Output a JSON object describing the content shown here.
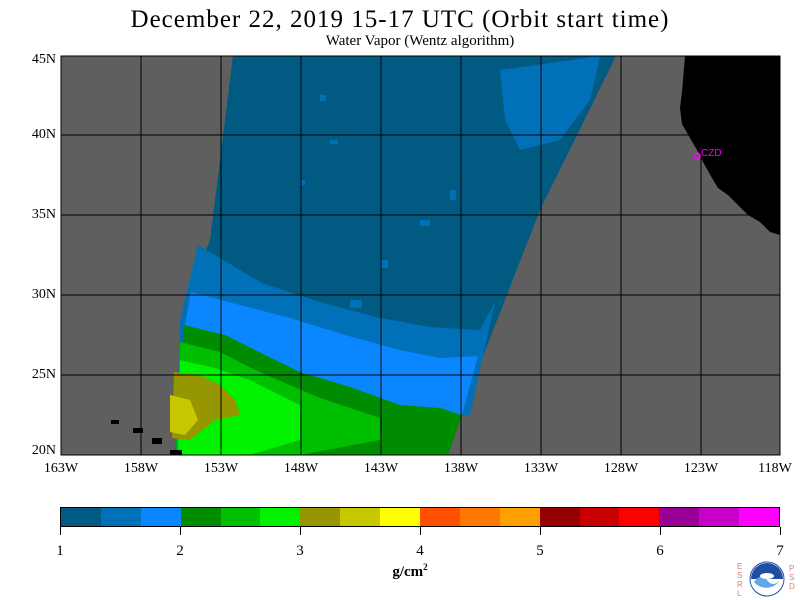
{
  "title": "December 22, 2019  15-17 UTC  (Orbit start time)",
  "subtitle": "Water Vapor (Wentz algorithm)",
  "map": {
    "lat_labels": [
      "45N",
      "40N",
      "35N",
      "30N",
      "25N",
      "20N"
    ],
    "lon_labels": [
      "163W",
      "158W",
      "153W",
      "148W",
      "143W",
      "138W",
      "133W",
      "128W",
      "123W",
      "118W"
    ],
    "station_label": "CZD",
    "colors": {
      "no_data": "#5f5f5f",
      "land": "#000000",
      "marker": "#ff00ff"
    }
  },
  "colorbar": {
    "colors": [
      "#005a82",
      "#0070b8",
      "#0a87ff",
      "#008c00",
      "#00bf00",
      "#00f200",
      "#969600",
      "#c8c800",
      "#ffff00",
      "#ff5000",
      "#ff7800",
      "#ffa000",
      "#960000",
      "#c80000",
      "#ff0000",
      "#960096",
      "#c800c8",
      "#ff00ff"
    ],
    "tick_labels": [
      "1",
      "2",
      "3",
      "4",
      "5",
      "6",
      "7"
    ],
    "units_base": "g/cm",
    "units_exp": "2"
  },
  "logo": {
    "left_letters": "ESRL",
    "right_letters": "PSD"
  }
}
